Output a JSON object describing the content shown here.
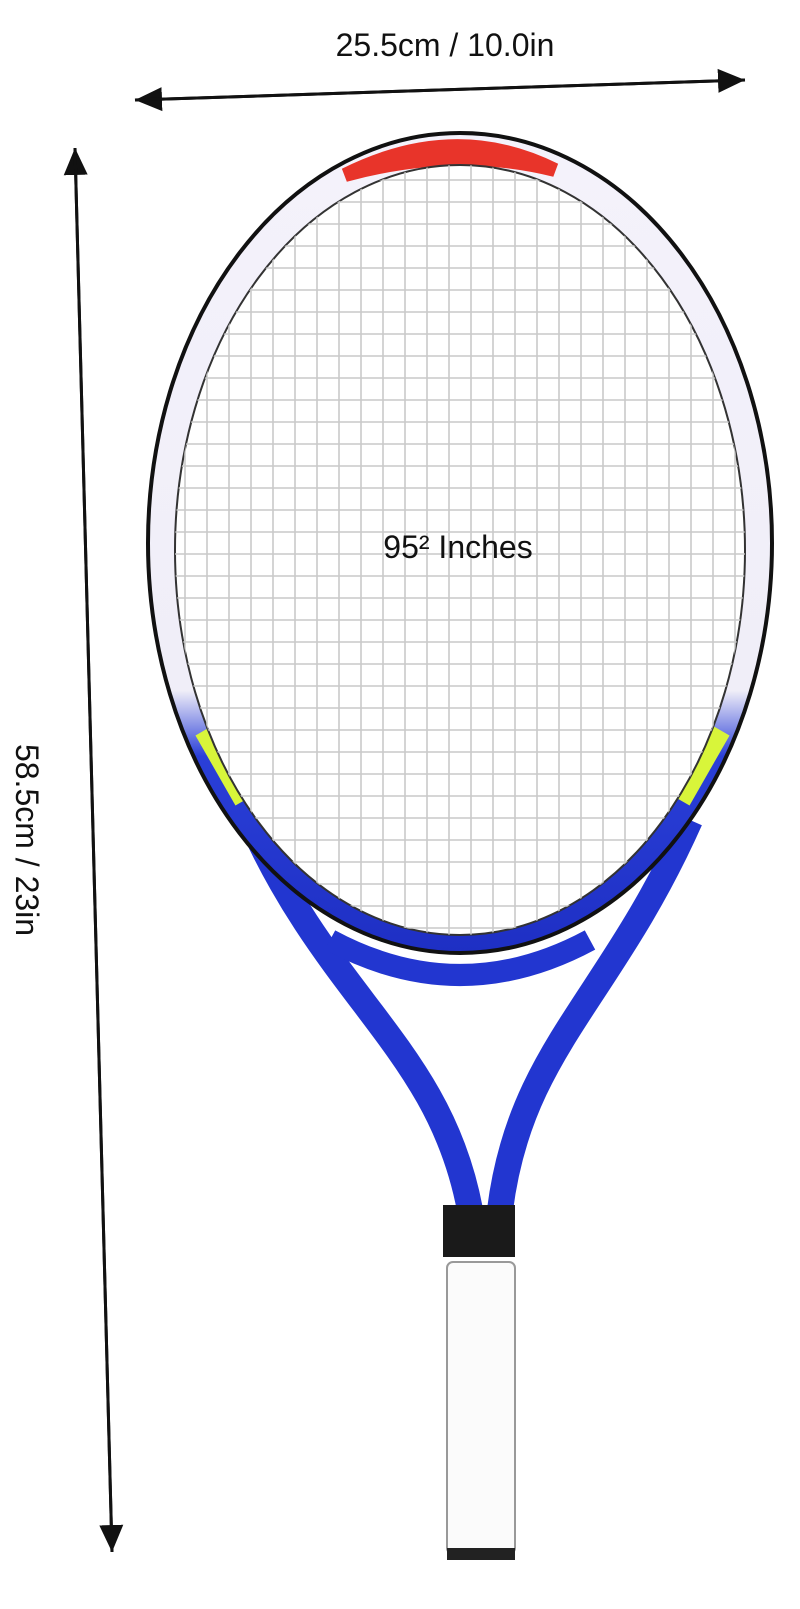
{
  "dimensions": {
    "width": "25.5cm / 10.0in",
    "height": "58.5cm / 23in"
  },
  "head_size": "95² Inches"
}
